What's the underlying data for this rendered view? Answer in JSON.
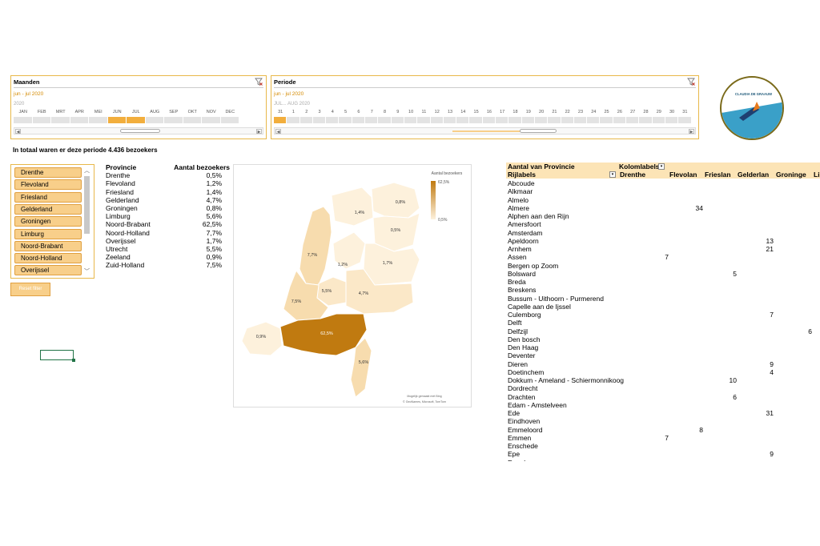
{
  "timelines": {
    "months": {
      "title": "Maanden",
      "range": "jun - jul 2020",
      "level": "2020",
      "labels": [
        "JAN",
        "FEB",
        "MRT",
        "APR",
        "MEI",
        "JUN",
        "JUL",
        "AUG",
        "SEP",
        "OKT",
        "NOV",
        "DEC"
      ],
      "selected": [
        "JUN",
        "JUL"
      ]
    },
    "period": {
      "title": "Periode",
      "range": "jun - jul 2020",
      "level": "JUL... AUG 2020",
      "labels": [
        "31",
        "1",
        "2",
        "3",
        "4",
        "5",
        "6",
        "7",
        "8",
        "9",
        "10",
        "11",
        "12",
        "13",
        "14",
        "15",
        "16",
        "17",
        "18",
        "19",
        "20",
        "21",
        "22",
        "23",
        "24",
        "25",
        "26",
        "27",
        "28",
        "29",
        "30",
        "31"
      ],
      "selected": [
        "31"
      ]
    }
  },
  "logo": {
    "text": "CLAUDIA DE GRAAUW"
  },
  "headline": "In totaal waren er deze periode 4.436 bezoekers",
  "slicer": {
    "items": [
      "Drenthe",
      "Flevoland",
      "Friesland",
      "Gelderland",
      "Groningen",
      "Limburg",
      "Noord-Brabant",
      "Noord-Holland",
      "Overijssel"
    ],
    "reset_label": "Reset filter"
  },
  "province_table": {
    "headers": [
      "Provincie",
      "Aantal bezoekers"
    ],
    "rows": [
      [
        "Drenthe",
        "0,5%"
      ],
      [
        "Flevoland",
        "1,2%"
      ],
      [
        "Friesland",
        "1,4%"
      ],
      [
        "Gelderland",
        "4,7%"
      ],
      [
        "Groningen",
        "0,8%"
      ],
      [
        "Limburg",
        "5,6%"
      ],
      [
        "Noord-Brabant",
        "62,5%"
      ],
      [
        "Noord-Holland",
        "7,7%"
      ],
      [
        "Overijssel",
        "1,7%"
      ],
      [
        "Utrecht",
        "5,5%"
      ],
      [
        "Zeeland",
        "0,9%"
      ],
      [
        "Zuid-Holland",
        "7,5%"
      ]
    ]
  },
  "map": {
    "legend_title": "Aantal bezoekers",
    "legend_max": "62,5%",
    "legend_min": "0,5%",
    "labels": [
      "0,8%",
      "1,4%",
      "0,5%",
      "7,7%",
      "1,2%",
      "1,7%",
      "5,5%",
      "4,7%",
      "7,5%",
      "62,5%",
      "0,9%",
      "5,6%"
    ],
    "credit1": "Mogelijk gemaakt met Bing",
    "credit2": "© GeoNames, Microsoft, TomTom",
    "colors": {
      "max": "#c07a10",
      "high": "#f7dcae",
      "mid": "#fbe8c8",
      "low": "#fdf1dc"
    }
  },
  "pivot": {
    "count_label": "Aantal van Provincie",
    "col_label": "Kolomlabels",
    "row_label": "Rijlabels",
    "columns": [
      "Drenthe",
      "Flevolan",
      "Frieslan",
      "Gelderlan",
      "Groninge",
      "Li"
    ],
    "rows": [
      {
        "label": "Abcoude",
        "values": [
          "",
          "",
          "",
          "",
          ""
        ]
      },
      {
        "label": "Alkmaar",
        "values": [
          "",
          "",
          "",
          "",
          ""
        ]
      },
      {
        "label": "Almelo",
        "values": [
          "",
          "",
          "",
          "",
          ""
        ]
      },
      {
        "label": "Almere",
        "values": [
          "",
          "34",
          "",
          "",
          ""
        ]
      },
      {
        "label": "Alphen aan den Rijn",
        "values": [
          "",
          "",
          "",
          "",
          ""
        ]
      },
      {
        "label": "Amersfoort",
        "values": [
          "",
          "",
          "",
          "",
          ""
        ]
      },
      {
        "label": "Amsterdam",
        "values": [
          "",
          "",
          "",
          "",
          ""
        ]
      },
      {
        "label": "Apeldoorn",
        "values": [
          "",
          "",
          "",
          "13",
          ""
        ]
      },
      {
        "label": "Arnhem",
        "values": [
          "",
          "",
          "",
          "21",
          ""
        ]
      },
      {
        "label": "Assen",
        "values": [
          "7",
          "",
          "",
          "",
          ""
        ]
      },
      {
        "label": "Bergen op Zoom",
        "values": [
          "",
          "",
          "",
          "",
          ""
        ]
      },
      {
        "label": "Bolsward",
        "values": [
          "",
          "",
          "5",
          "",
          ""
        ]
      },
      {
        "label": "Breda",
        "values": [
          "",
          "",
          "",
          "",
          ""
        ]
      },
      {
        "label": "Breskens",
        "values": [
          "",
          "",
          "",
          "",
          ""
        ]
      },
      {
        "label": "Bussum - Uithoorn - Purmerend",
        "values": [
          "",
          "",
          "",
          "",
          ""
        ]
      },
      {
        "label": "Capelle aan de Ijssel",
        "values": [
          "",
          "",
          "",
          "",
          ""
        ]
      },
      {
        "label": "Culemborg",
        "values": [
          "",
          "",
          "",
          "7",
          ""
        ]
      },
      {
        "label": "Delft",
        "values": [
          "",
          "",
          "",
          "",
          ""
        ]
      },
      {
        "label": "Delfzijl",
        "values": [
          "",
          "",
          "",
          "",
          "6"
        ]
      },
      {
        "label": "Den bosch",
        "values": [
          "",
          "",
          "",
          "",
          ""
        ]
      },
      {
        "label": "Den Haag",
        "values": [
          "",
          "",
          "",
          "",
          ""
        ]
      },
      {
        "label": "Deventer",
        "values": [
          "",
          "",
          "",
          "",
          ""
        ]
      },
      {
        "label": "Dieren",
        "values": [
          "",
          "",
          "",
          "9",
          ""
        ]
      },
      {
        "label": "Doetinchem",
        "values": [
          "",
          "",
          "",
          "4",
          ""
        ]
      },
      {
        "label": "Dokkum - Ameland - Schiermonnikoog",
        "values": [
          "",
          "",
          "10",
          "",
          ""
        ]
      },
      {
        "label": "Dordrecht",
        "values": [
          "",
          "",
          "",
          "",
          ""
        ]
      },
      {
        "label": "Drachten",
        "values": [
          "",
          "",
          "6",
          "",
          ""
        ]
      },
      {
        "label": "Edam - Amstelveen",
        "values": [
          "",
          "",
          "",
          "",
          ""
        ]
      },
      {
        "label": "Ede",
        "values": [
          "",
          "",
          "",
          "31",
          ""
        ]
      },
      {
        "label": "Eindhoven",
        "values": [
          "",
          "",
          "",
          "",
          ""
        ]
      },
      {
        "label": "Emmeloord",
        "values": [
          "",
          "8",
          "",
          "",
          ""
        ]
      },
      {
        "label": "Emmen",
        "values": [
          "7",
          "",
          "",
          "",
          ""
        ]
      },
      {
        "label": "Enschede",
        "values": [
          "",
          "",
          "",
          "",
          ""
        ]
      },
      {
        "label": "Epe",
        "values": [
          "",
          "",
          "",
          "9",
          ""
        ]
      },
      {
        "label": "Ermelo",
        "values": [
          "",
          "",
          "",
          "",
          ""
        ]
      }
    ]
  }
}
